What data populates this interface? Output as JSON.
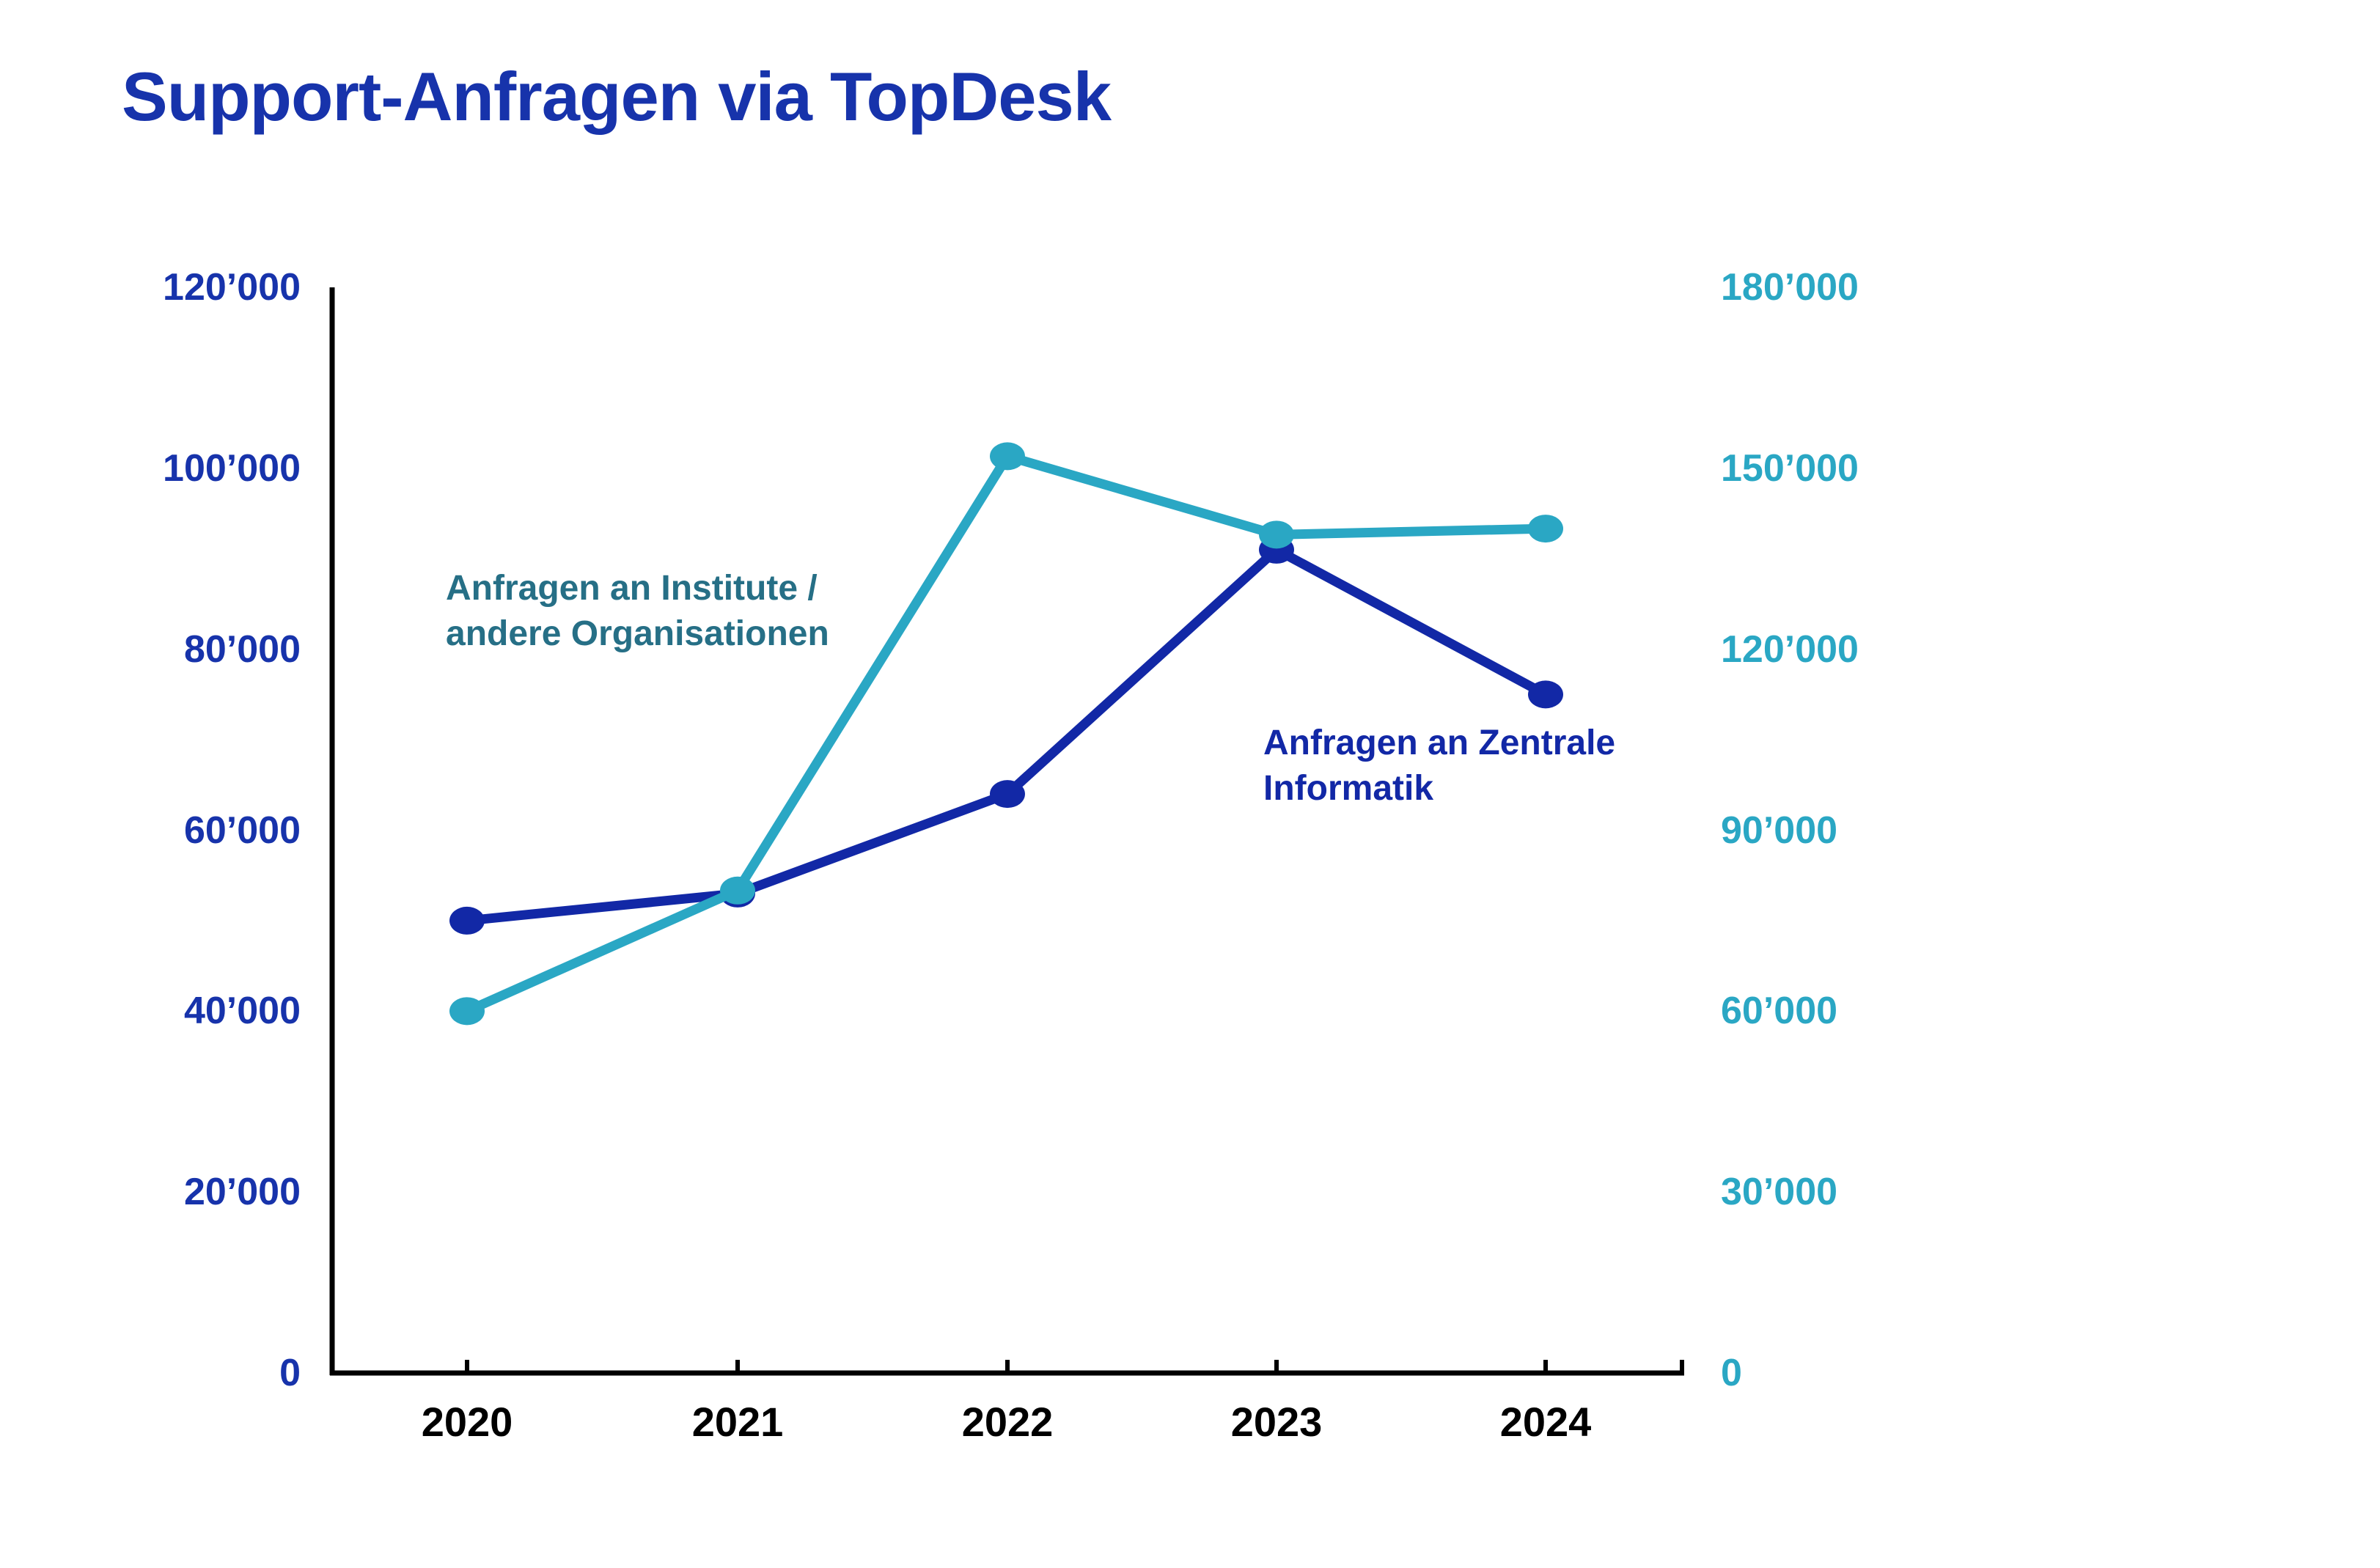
{
  "title": {
    "text": "Support-Anfragen via TopDesk",
    "color": "#1733AB"
  },
  "chart_data": {
    "type": "line",
    "title": "Support-Anfragen via TopDesk",
    "categories": [
      "2020",
      "2021",
      "2022",
      "2023",
      "2024"
    ],
    "series": [
      {
        "name": "Anfragen an Zentrale Informatik",
        "axis": "left",
        "color": "#1228A6",
        "values": [
          50000,
          53000,
          64000,
          91000,
          75000
        ]
      },
      {
        "name": "Anfragen an Institute / andere Organisationen",
        "axis": "right",
        "color": "#2AA7C4",
        "values": [
          60000,
          80000,
          152000,
          139000,
          140000
        ]
      }
    ],
    "left_axis": {
      "min": 0,
      "max": 120000,
      "step": 20000,
      "color": "#1733AB",
      "ticks": [
        "120’000",
        "100’000",
        "80’000",
        "60’000",
        "40’000",
        "20’000",
        "0"
      ]
    },
    "right_axis": {
      "min": 0,
      "max": 180000,
      "step": 30000,
      "color": "#2AA7C4",
      "ticks": [
        "180’000",
        "150’000",
        "120’000",
        "90’000",
        "60’000",
        "30’000",
        "0"
      ]
    },
    "x_axis": {
      "labels": [
        "2020",
        "2021",
        "2022",
        "2023",
        "2024"
      ],
      "color": "#000000"
    },
    "grid": false,
    "legend_position": "inline-annotations",
    "axis_line_color": "#000000"
  },
  "annotations": [
    {
      "line1": "Anfragen an Institute /",
      "line2": "andere Organisationen",
      "color": "#266F86"
    },
    {
      "line1": "Anfragen an Zentrale",
      "line2": "Informatik",
      "color": "#1228A6"
    }
  ]
}
